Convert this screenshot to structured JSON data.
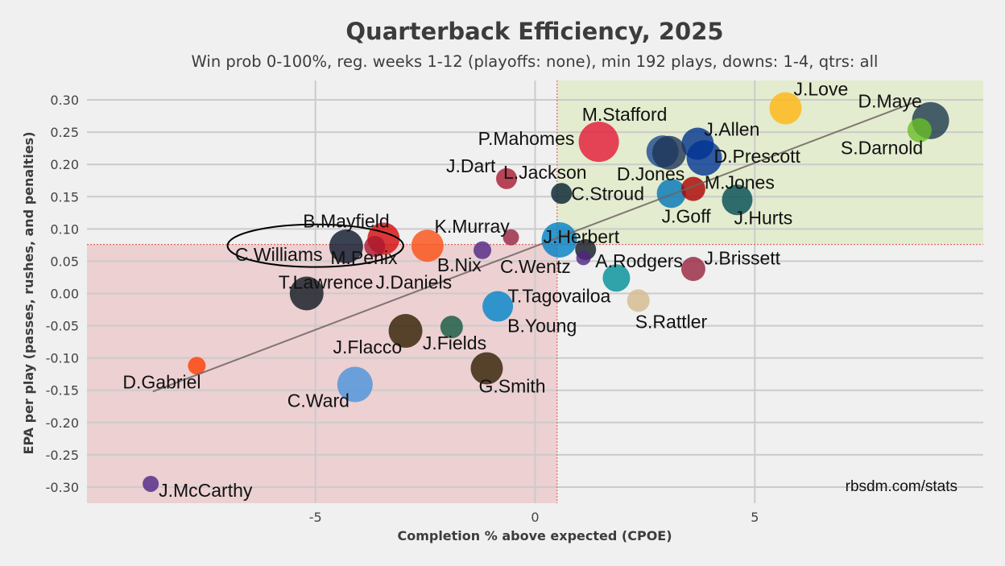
{
  "chart_data": {
    "type": "scatter",
    "title": "Quarterback Efficiency, 2025",
    "subtitle": "Win prob 0-100%, reg. weeks 1-12 (playoffs: none), min 192 plays, downs: 1-4, qtrs: all",
    "xlabel": "Completion % above expected (CPOE)",
    "ylabel": "EPA per play (passes, rushes, and penalties)",
    "credit": "rbsdm.com/stats",
    "xlim": [
      -10.2,
      10.2
    ],
    "ylim": [
      -0.325,
      0.33
    ],
    "x_ticks": [
      {
        "value": -5,
        "label": "-5"
      },
      {
        "value": 0,
        "label": "0"
      },
      {
        "value": 5,
        "label": "5"
      }
    ],
    "y_ticks": [
      {
        "value": 0.3,
        "label": "0.30"
      },
      {
        "value": 0.25,
        "label": "0.25"
      },
      {
        "value": 0.2,
        "label": "0.20"
      },
      {
        "value": 0.15,
        "label": "0.15"
      },
      {
        "value": 0.1,
        "label": "0.10"
      },
      {
        "value": 0.05,
        "label": "0.05"
      },
      {
        "value": 0.0,
        "label": "0.00"
      },
      {
        "value": -0.05,
        "label": "-0.05"
      },
      {
        "value": -0.1,
        "label": "-0.10"
      },
      {
        "value": -0.15,
        "label": "-0.15"
      },
      {
        "value": -0.2,
        "label": "-0.20"
      },
      {
        "value": -0.25,
        "label": "-0.25"
      },
      {
        "value": -0.3,
        "label": "-0.30"
      }
    ],
    "grid": true,
    "mean_cpoe": 0.5,
    "mean_epa": 0.076,
    "quadrant_colors": {
      "good": "#e3ecce",
      "bad": "#ecd0d2",
      "mean_line": "#e06666"
    },
    "trend_line": {
      "x": [
        -8.7,
        8.7
      ],
      "y": [
        -0.152,
        0.298
      ],
      "color": "#6d6462"
    },
    "highlight": {
      "name": "C.Williams",
      "cx": -5.0,
      "cy": 0.074,
      "rx": 2.0,
      "ry": 0.033
    },
    "points": [
      {
        "name": "J.Love",
        "x": 5.7,
        "y": 0.287,
        "size": 20,
        "color": "#ffb612",
        "label_dx": 10,
        "label_dy": -16
      },
      {
        "name": "D.Maye",
        "x": 9.0,
        "y": 0.268,
        "size": 23,
        "color": "#1b3a4c",
        "label_dx": -90,
        "label_dy": -16
      },
      {
        "name": "S.Darnold",
        "x": 8.75,
        "y": 0.253,
        "size": 15,
        "color": "#69be28",
        "label_dx": -98,
        "label_dy": 30
      },
      {
        "name": "P.Mahomes",
        "x": 1.45,
        "y": 0.235,
        "size": 25,
        "color": "#e31837",
        "label_dx": -150,
        "label_dy": 4
      },
      {
        "name": "M.Stafford",
        "x": 2.9,
        "y": 0.22,
        "size": 20,
        "color": "#1a4a8d",
        "label_dx": -100,
        "label_dy": -38
      },
      {
        "name": "J.Allen",
        "x": 3.7,
        "y": 0.232,
        "size": 20,
        "color": "#00338d",
        "label_dx": 8,
        "label_dy": -10
      },
      {
        "name": "D.Prescott",
        "x": 3.85,
        "y": 0.21,
        "size": 22,
        "color": "#003594",
        "label_dx": 12,
        "label_dy": 6
      },
      {
        "name": "D.Jones",
        "x": 3.05,
        "y": 0.218,
        "size": 21,
        "color": "#1e3456",
        "label_dx": -65,
        "label_dy": 34
      },
      {
        "name": "J.Dart",
        "x": -0.65,
        "y": 0.178,
        "size": 13,
        "color": "#a71930",
        "label_dx": -75,
        "label_dy": -8
      },
      {
        "name": "L.Jackson",
        "x": 1.2,
        "y": 0.188,
        "size": 0,
        "color": "#241773",
        "label_dx": -105,
        "label_dy": 8
      },
      {
        "name": "C.Stroud",
        "x": 0.6,
        "y": 0.155,
        "size": 13,
        "color": "#03202f",
        "label_dx": 12,
        "label_dy": 8
      },
      {
        "name": "J.Goff",
        "x": 3.1,
        "y": 0.155,
        "size": 18,
        "color": "#0076b6",
        "label_dx": -12,
        "label_dy": 36
      },
      {
        "name": "M.Jones",
        "x": 3.6,
        "y": 0.162,
        "size": 15,
        "color": "#aa0000",
        "label_dx": 14,
        "label_dy": 0
      },
      {
        "name": "J.Hurts",
        "x": 4.6,
        "y": 0.145,
        "size": 19,
        "color": "#004c54",
        "label_dx": -4,
        "label_dy": 30
      },
      {
        "name": "B.Mayfield",
        "x": -3.45,
        "y": 0.085,
        "size": 20,
        "color": "#d50a0a",
        "label_dx": -100,
        "label_dy": -14
      },
      {
        "name": "K.Murray",
        "x": -0.55,
        "y": 0.087,
        "size": 10,
        "color": "#97233f",
        "label_dx": -95,
        "label_dy": -6
      },
      {
        "name": "J.Herbert",
        "x": 0.55,
        "y": 0.083,
        "size": 22,
        "color": "#0080c6",
        "label_dx": -20,
        "label_dy": 4
      },
      {
        "name": "C.Williams",
        "x": -4.3,
        "y": 0.073,
        "size": 21,
        "color": "#0b162a",
        "label_dx": -138,
        "label_dy": 18
      },
      {
        "name": "M.Penix",
        "x": -3.65,
        "y": 0.073,
        "size": 13,
        "color": "#a71930",
        "label_dx": -55,
        "label_dy": 22
      },
      {
        "name": "B.Nix",
        "x": -2.45,
        "y": 0.074,
        "size": 20,
        "color": "#fb4f14",
        "label_dx": 12,
        "label_dy": 32
      },
      {
        "name": "C.Wentz",
        "x": -1.2,
        "y": 0.067,
        "size": 11,
        "color": "#4f2683",
        "label_dx": 22,
        "label_dy": 28
      },
      {
        "name": "A.Rodgers",
        "x": 1.15,
        "y": 0.068,
        "size": 13,
        "color": "#101820",
        "label_dx": 12,
        "label_dy": 22
      },
      {
        "name": "J.Brissett",
        "x": 1.1,
        "y": 0.055,
        "size": 9,
        "color": "#4f2683",
        "label_dx": 150,
        "label_dy": 8
      },
      {
        "name": "T.Lawrence",
        "x": -5.2,
        "y": 0.0,
        "size": 21,
        "color": "#101820",
        "label_dx": -35,
        "label_dy": -6
      },
      {
        "name": "J.Daniels",
        "x": -1.98,
        "y": 0.025,
        "size": 0,
        "color": "#5a1414",
        "label_dx": -90,
        "label_dy": 14
      },
      {
        "name": "J.Brissett-2",
        "x": 3.6,
        "y": 0.038,
        "size": 15,
        "color": "#97233f",
        "label_dx": 12,
        "label_dy": -6,
        "hide_label": true
      },
      {
        "name": "T.Tagovailoa",
        "x": 1.85,
        "y": 0.024,
        "size": 17,
        "color": "#008e97",
        "label_dx": -135,
        "label_dy": 30
      },
      {
        "name": "S.Rattler",
        "x": 2.35,
        "y": -0.011,
        "size": 14,
        "color": "#d3bc8d",
        "label_dx": -4,
        "label_dy": 34
      },
      {
        "name": "B.Young",
        "x": -0.85,
        "y": -0.02,
        "size": 19,
        "color": "#0085ca",
        "label_dx": 12,
        "label_dy": 32
      },
      {
        "name": "J.Fields",
        "x": -1.9,
        "y": -0.052,
        "size": 14,
        "color": "#125740",
        "label_dx": -36,
        "label_dy": 28
      },
      {
        "name": "J.Flacco",
        "x": -2.95,
        "y": -0.058,
        "size": 21,
        "color": "#311d00",
        "label_dx": -90,
        "label_dy": 28
      },
      {
        "name": "G.Smith",
        "x": -1.1,
        "y": -0.116,
        "size": 20,
        "color": "#311d00",
        "label_dx": -10,
        "label_dy": 30
      },
      {
        "name": "D.Gabriel",
        "x": -7.7,
        "y": -0.112,
        "size": 11,
        "color": "#ff3c00",
        "label_dx": -92,
        "label_dy": 28
      },
      {
        "name": "C.Ward",
        "x": -4.1,
        "y": -0.141,
        "size": 22,
        "color": "#4b92db",
        "label_dx": -84,
        "label_dy": 28
      },
      {
        "name": "J.McCarthy",
        "x": -8.75,
        "y": -0.295,
        "size": 10,
        "color": "#4f2683",
        "label_dx": 10,
        "label_dy": 16
      }
    ],
    "label_texts": {
      "J.Brissett": "J.Brissett",
      "J.Brissett-2": ""
    }
  }
}
